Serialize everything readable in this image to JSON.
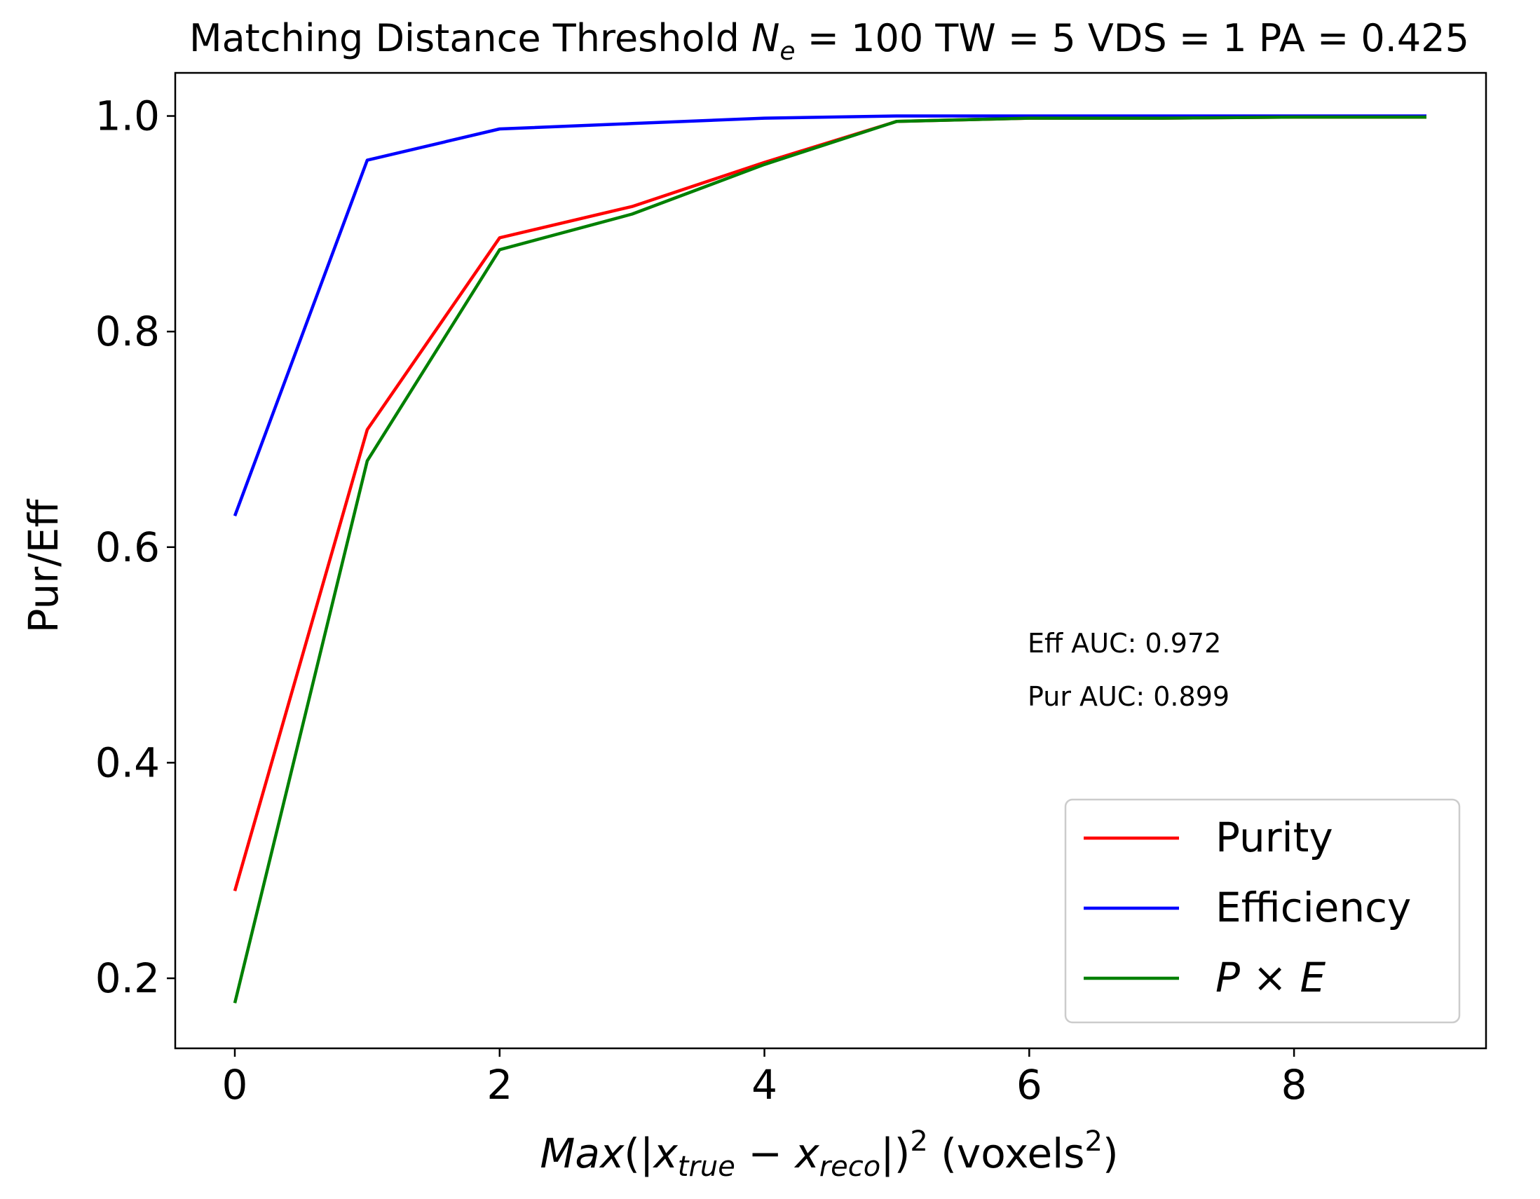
{
  "chart_data": {
    "type": "line",
    "title_parts": {
      "prefix": "Matching Distance Threshold ",
      "ne_symbol": "N",
      "ne_sub": "e",
      "suffix": " = 100 TW = 5 VDS = 1 PA = 0.425"
    },
    "xlabel_parts": {
      "func": "Max",
      "open": "(|",
      "x1": "x",
      "sub1": "true",
      "minus": " − ",
      "x2": "x",
      "sub2": "reco",
      "close": "|)",
      "sup": "2",
      "unit_prefix": " (voxels",
      "unit_sup": "2",
      "unit_suffix": ")"
    },
    "ylabel": "Pur/Eff",
    "xlim": [
      -0.45,
      9.45
    ],
    "ylim": [
      0.135,
      1.04
    ],
    "xticks": [
      0,
      2,
      4,
      6,
      8
    ],
    "xtick_labels": [
      "0",
      "2",
      "4",
      "6",
      "8"
    ],
    "yticks": [
      0.2,
      0.4,
      0.6,
      0.8,
      1.0
    ],
    "ytick_labels": [
      "0.2",
      "0.4",
      "0.6",
      "0.8",
      "1.0"
    ],
    "x": [
      0,
      1,
      2,
      3,
      4,
      5,
      6,
      7,
      8,
      9
    ],
    "series": [
      {
        "name": "Purity",
        "color": "#ff0000",
        "values": [
          0.281,
          0.709,
          0.887,
          0.916,
          0.957,
          0.995,
          0.998,
          0.998,
          0.999,
          0.999
        ]
      },
      {
        "name": "Efficiency",
        "color": "#0000ff",
        "values": [
          0.629,
          0.959,
          0.988,
          0.993,
          0.998,
          1.0,
          1.0,
          1.0,
          1.0,
          1.0
        ]
      },
      {
        "name": "P × E",
        "legend_parts": {
          "a": "P",
          "op": " × ",
          "b": "E"
        },
        "color": "#008000",
        "values": [
          0.177,
          0.68,
          0.876,
          0.909,
          0.955,
          0.995,
          0.998,
          0.998,
          0.999,
          0.999
        ]
      }
    ],
    "annotations": [
      "Eff AUC: 0.972",
      "Pur AUC: 0.899"
    ],
    "legend_position": "lower right",
    "grid": false
  }
}
